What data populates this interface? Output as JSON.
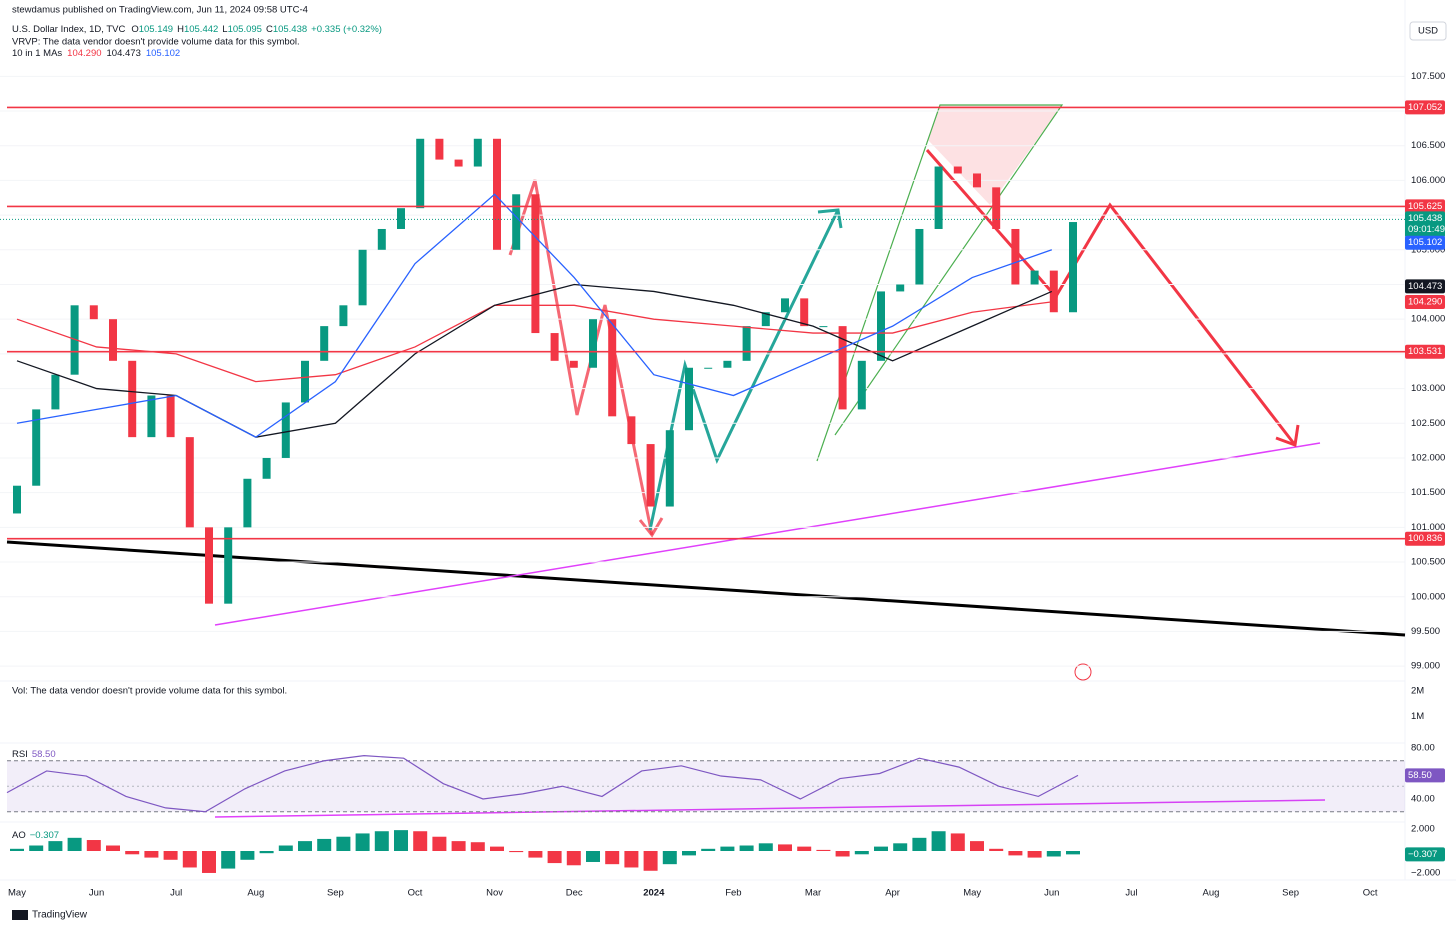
{
  "header": {
    "publisher": "stewdamus published on TradingView.com, Jun 11, 2024 09:58 UTC-4"
  },
  "legend": {
    "symbol": "U.S. Dollar Index, 1D, TVC",
    "ohlc": [
      {
        "label": "O",
        "value": "105.149"
      },
      {
        "label": "H",
        "value": "105.442"
      },
      {
        "label": "L",
        "value": "105.095"
      },
      {
        "label": "C",
        "value": "105.438"
      }
    ],
    "change": "+0.335 (+0.32%)",
    "vrvp": "VRVP: The data vendor doesn't provide volume data for this symbol.",
    "ma_title": "10 in 1 MAs",
    "ma_values": [
      {
        "text": "104.290",
        "color": "#f23645"
      },
      {
        "text": "104.473",
        "color": "#131722"
      },
      {
        "text": "105.102",
        "color": "#2962ff"
      }
    ]
  },
  "currency": "USD",
  "price_pane": {
    "ylim": [
      98.8,
      108.6
    ],
    "yticks": [
      {
        "value": 107.5,
        "label": "107.500"
      },
      {
        "value": 107,
        "label": "107.000"
      },
      {
        "value": 106.5,
        "label": "106.500"
      },
      {
        "value": 106,
        "label": "106.000"
      },
      {
        "value": 105.5,
        "label": "105.500"
      },
      {
        "value": 105,
        "label": "105.000"
      },
      {
        "value": 104.5,
        "label": "104.500"
      },
      {
        "value": 104,
        "label": "104.000"
      },
      {
        "value": 103.5,
        "label": "103.500"
      },
      {
        "value": 103,
        "label": "103.000"
      },
      {
        "value": 102.5,
        "label": "102.500"
      },
      {
        "value": 102,
        "label": "102.000"
      },
      {
        "value": 101.5,
        "label": "101.500"
      },
      {
        "value": 101,
        "label": "101.000"
      },
      {
        "value": 100.5,
        "label": "100.500"
      },
      {
        "value": 100,
        "label": "100.000"
      },
      {
        "value": 99.5,
        "label": "99.500"
      },
      {
        "value": 99,
        "label": "99.000"
      }
    ],
    "levels": [
      {
        "value": 107.052,
        "color": "#f23645"
      },
      {
        "value": 105.625,
        "color": "#f23645"
      },
      {
        "value": 103.531,
        "color": "#f23645"
      },
      {
        "value": 100.836,
        "color": "#f23645"
      }
    ],
    "candles": {
      "up_color": "#089981",
      "down_color": "#f23645",
      "first_open": 101.2,
      "closes": [
        101.6,
        102.7,
        103.2,
        104.2,
        104.0,
        103.4,
        102.3,
        102.9,
        102.3,
        101.0,
        99.9,
        101.0,
        101.7,
        102.0,
        102.8,
        103.4,
        103.9,
        104.2,
        105.0,
        105.3,
        105.6,
        106.6,
        106.3,
        106.2,
        106.6,
        105.0,
        105.8,
        103.8,
        103.4,
        103.3,
        104.0,
        102.6,
        102.2,
        101.3,
        102.4,
        103.3,
        103.3,
        103.4,
        103.9,
        104.1,
        104.3,
        103.9,
        103.9,
        102.7,
        103.4,
        104.4,
        104.5,
        105.3,
        106.2,
        106.1,
        105.9,
        105.3,
        104.5,
        104.7,
        104.1,
        105.4
      ]
    },
    "mas": [
      {
        "color": "#f23645",
        "values": [
          104.0,
          103.6,
          103.5,
          103.1,
          103.2,
          103.6,
          104.2,
          104.2,
          104.0,
          103.9,
          103.8,
          103.8,
          104.1,
          104.25
        ],
        "tag": {
          "value": 104.29,
          "label": "104.290"
        }
      },
      {
        "color": "#131722",
        "values": [
          103.4,
          103.0,
          102.9,
          102.3,
          102.5,
          103.5,
          104.2,
          104.5,
          104.4,
          104.2,
          103.9,
          103.4,
          103.9,
          104.4
        ],
        "tag": 104.473
      },
      {
        "color": "#2962ff",
        "values": [
          102.5,
          102.7,
          102.9,
          102.3,
          103.1,
          104.8,
          105.8,
          104.6,
          103.2,
          102.9,
          103.4,
          103.9,
          104.6,
          105.0
        ],
        "tag": 105.102
      }
    ],
    "last_price": {
      "value": 105.438,
      "countdown": "09:01:49",
      "color": "#089981"
    }
  },
  "volume_pane": {
    "text": "Vol: The data vendor doesn't provide volume data for this symbol.",
    "ylim": [
      0,
      2360000
    ],
    "yticks": [
      {
        "value": 2000000,
        "label": "2M"
      },
      {
        "value": 1000000,
        "label": "1M"
      }
    ]
  },
  "rsi_pane": {
    "title": "RSI",
    "value": "58.50",
    "ylim": [
      23.5,
      82.35
    ],
    "yticks": [
      {
        "value": 80,
        "label": "80.00"
      },
      {
        "value": 40,
        "label": "40.00"
      }
    ],
    "band": [
      30,
      70
    ],
    "middle": 50,
    "color": "#7e57c2",
    "values": [
      45,
      62,
      58,
      42,
      33,
      30,
      48,
      62,
      70,
      74,
      72,
      52,
      40,
      44,
      50,
      42,
      62,
      66,
      58,
      55,
      40,
      56,
      60,
      72,
      65,
      50,
      42,
      58.5
    ],
    "tag": {
      "value": 58.5,
      "label": "58.50"
    }
  },
  "ao_pane": {
    "title": "AO",
    "value": "−0.307",
    "ylim": [
      -2.55,
      2.55
    ],
    "yticks": [
      {
        "value": 2,
        "label": "2.000"
      },
      {
        "value": -2,
        "label": "−2.000"
      }
    ],
    "rising_color": "#089981",
    "falling_color": "#f23645",
    "values": [
      0.2,
      0.5,
      0.9,
      1.2,
      1.0,
      0.5,
      -0.3,
      -0.6,
      -0.8,
      -1.5,
      -2.0,
      -1.6,
      -0.8,
      -0.2,
      0.5,
      0.9,
      1.1,
      1.3,
      1.6,
      1.8,
      1.9,
      1.8,
      1.3,
      0.9,
      0.8,
      0.4,
      -0.1,
      -0.6,
      -1.1,
      -1.3,
      -1.0,
      -1.2,
      -1.5,
      -1.8,
      -1.2,
      -0.4,
      0.2,
      0.4,
      0.5,
      0.7,
      0.6,
      0.4,
      0.1,
      -0.5,
      -0.3,
      0.4,
      0.7,
      1.2,
      1.8,
      1.6,
      0.9,
      0.2,
      -0.4,
      -0.6,
      -0.5,
      -0.307
    ],
    "tag": {
      "value": -0.307,
      "label": "−0.307"
    }
  },
  "x_axis": {
    "labels": [
      "May",
      "Jun",
      "Jul",
      "Aug",
      "Sep",
      "Oct",
      "Nov",
      "Dec",
      "2024",
      "Feb",
      "Mar",
      "Apr",
      "May",
      "Jun",
      "Jul",
      "Aug",
      "Sep",
      "Oct"
    ]
  },
  "footer": {
    "brand": "TradingView"
  }
}
